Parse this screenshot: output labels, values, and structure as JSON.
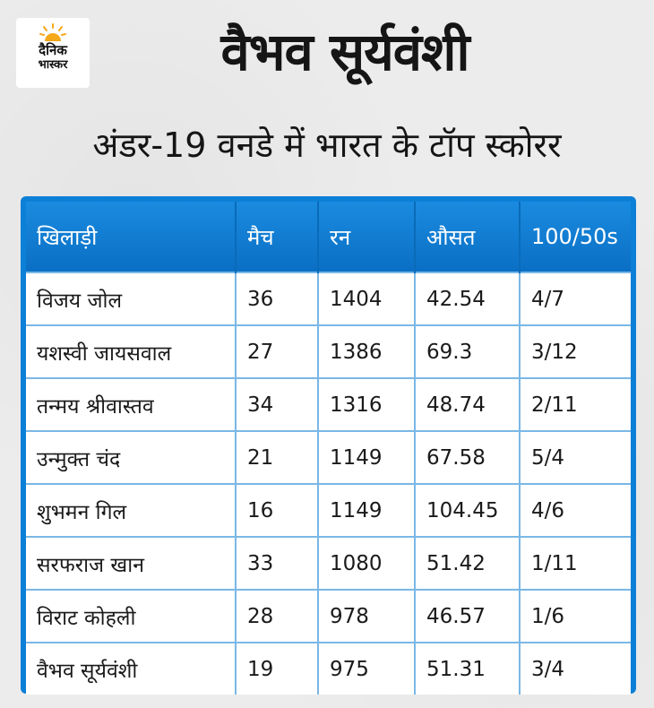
{
  "logo": {
    "line1": "दैनिक",
    "line2": "भास्कर",
    "sun_color": "#f5a81a"
  },
  "title": "वैभव सूर्यवंशी",
  "subtitle": "अंडर-19 वनडे में भारत के टॉप स्कोरर",
  "colors": {
    "header_blue": "#0c7fd6",
    "background": "#ebebeb",
    "row": "#ffffff"
  },
  "table": {
    "headers": [
      "खिलाड़ी",
      "मैच",
      "रन",
      "औसत",
      "100/50s"
    ],
    "rows": [
      [
        "विजय जोल",
        "36",
        "1404",
        "42.54",
        "4/7"
      ],
      [
        "यशस्वी जायसवाल",
        "27",
        "1386",
        "69.3",
        "3/12"
      ],
      [
        "तन्मय श्रीवास्तव",
        "34",
        "1316",
        "48.74",
        "2/11"
      ],
      [
        "उन्मुक्त चंद",
        "21",
        "1149",
        "67.58",
        "5/4"
      ],
      [
        "शुभमन गिल",
        "16",
        "1149",
        "104.45",
        "4/6"
      ],
      [
        "सरफराज खान",
        "33",
        "1080",
        "51.42",
        "1/11"
      ],
      [
        "विराट कोहली",
        "28",
        "978",
        "46.57",
        "1/6"
      ],
      [
        "वैभव सूर्यवंशी",
        "19",
        "975",
        "51.31",
        "3/4"
      ]
    ]
  }
}
